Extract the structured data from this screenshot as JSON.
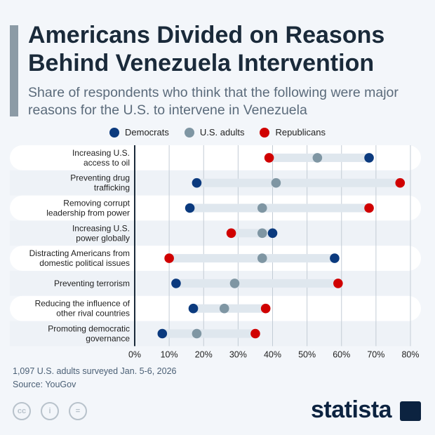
{
  "title": "Americans Divided on Reasons Behind Venezuela Intervention",
  "subtitle": "Share of respondents who think that the following were major reasons for the U.S. to intervene in Venezuela",
  "footer": {
    "note": "1,097 U.S. adults surveyed Jan. 5-6, 2026",
    "source": "Source: YouGov",
    "license_icons": [
      "cc",
      "by",
      "nd"
    ],
    "brand": "statista"
  },
  "chart_data": {
    "type": "dot-range",
    "categories": [
      "Increasing U.S.\naccess to oil",
      "Preventing drug\ntrafficking",
      "Removing corrupt\nleadership from power",
      "Increasing U.S.\npower globally",
      "Distracting Americans from\ndomestic political issues",
      "Preventing terrorism",
      "Reducing the influence of\nother rival countries",
      "Promoting democratic\ngovernance"
    ],
    "series": [
      {
        "name": "Democrats",
        "color": "#0b3a7e",
        "values": [
          68,
          18,
          16,
          40,
          58,
          12,
          17,
          8
        ]
      },
      {
        "name": "U.S. adults",
        "color": "#7f96a3",
        "values": [
          53,
          41,
          37,
          37,
          37,
          29,
          26,
          18
        ]
      },
      {
        "name": "Republicans",
        "color": "#d00000",
        "values": [
          39,
          77,
          68,
          28,
          10,
          59,
          38,
          35
        ]
      }
    ],
    "xlim": [
      0,
      80
    ],
    "xticks": [
      "0%",
      "10%",
      "20%",
      "30%",
      "40%",
      "50%",
      "60%",
      "70%",
      "80%"
    ],
    "grid": true,
    "legend": "top"
  }
}
